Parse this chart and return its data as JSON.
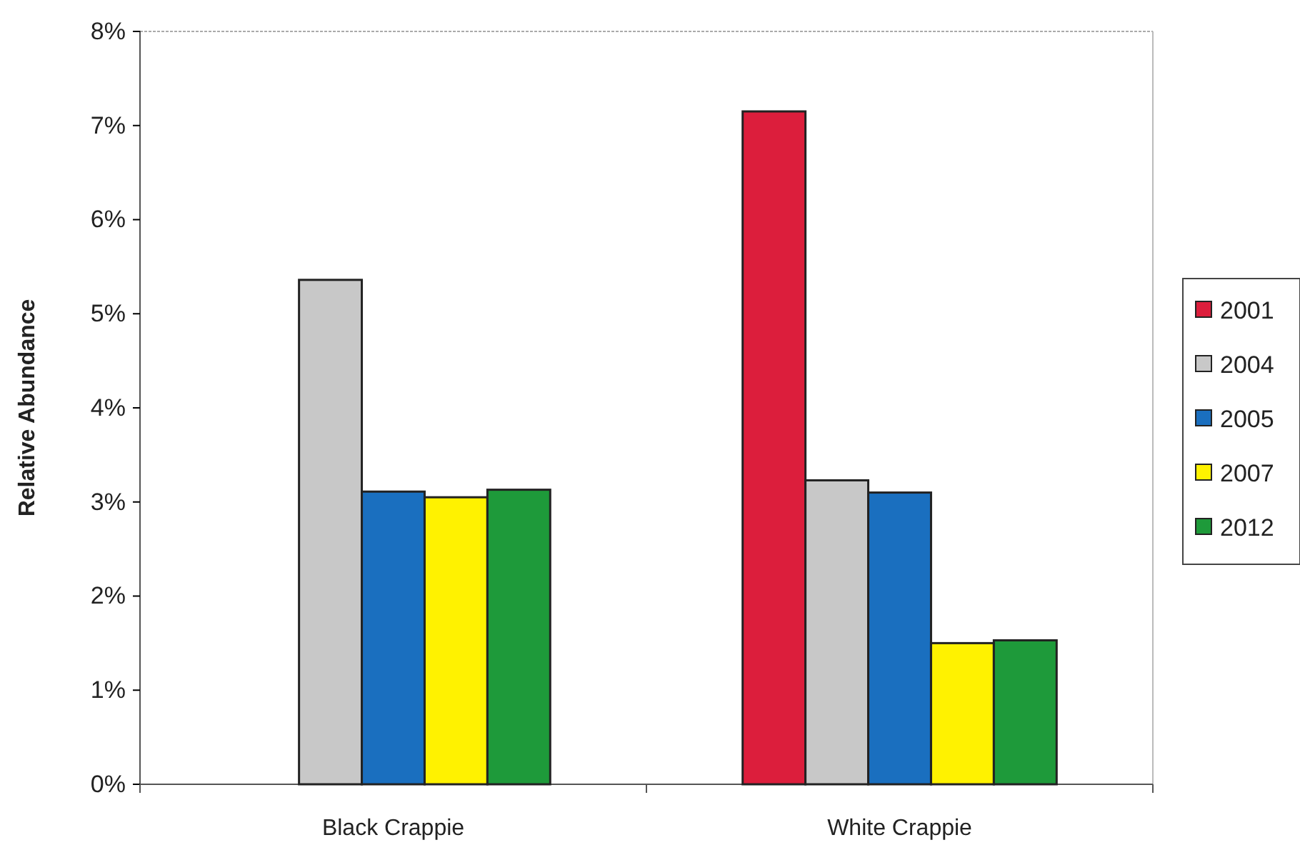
{
  "chart_data": {
    "type": "bar",
    "ylabel": "Relative Abundance",
    "categories": [
      "Black Crappie",
      "White Crappie"
    ],
    "series": [
      {
        "name": "2001",
        "color": "#dc1e3c",
        "values": [
          null,
          7.15
        ]
      },
      {
        "name": "2004",
        "color": "#c8c8c8",
        "values": [
          5.36,
          3.23
        ]
      },
      {
        "name": "2005",
        "color": "#1a6fbf",
        "values": [
          3.11,
          3.1
        ]
      },
      {
        "name": "2007",
        "color": "#fff200",
        "values": [
          3.05,
          1.5
        ]
      },
      {
        "name": "2012",
        "color": "#1e9a3a",
        "values": [
          3.13,
          1.53
        ]
      }
    ],
    "ylim": [
      0,
      8
    ],
    "yticks": [
      {
        "value": 0,
        "label": "0%"
      },
      {
        "value": 1,
        "label": "1%"
      },
      {
        "value": 2,
        "label": "2%"
      },
      {
        "value": 3,
        "label": "3%"
      },
      {
        "value": 4,
        "label": "4%"
      },
      {
        "value": 5,
        "label": "5%"
      },
      {
        "value": 6,
        "label": "6%"
      },
      {
        "value": 7,
        "label": "7%"
      },
      {
        "value": 8,
        "label": "8%"
      }
    ],
    "grid": false,
    "legend": "right"
  }
}
